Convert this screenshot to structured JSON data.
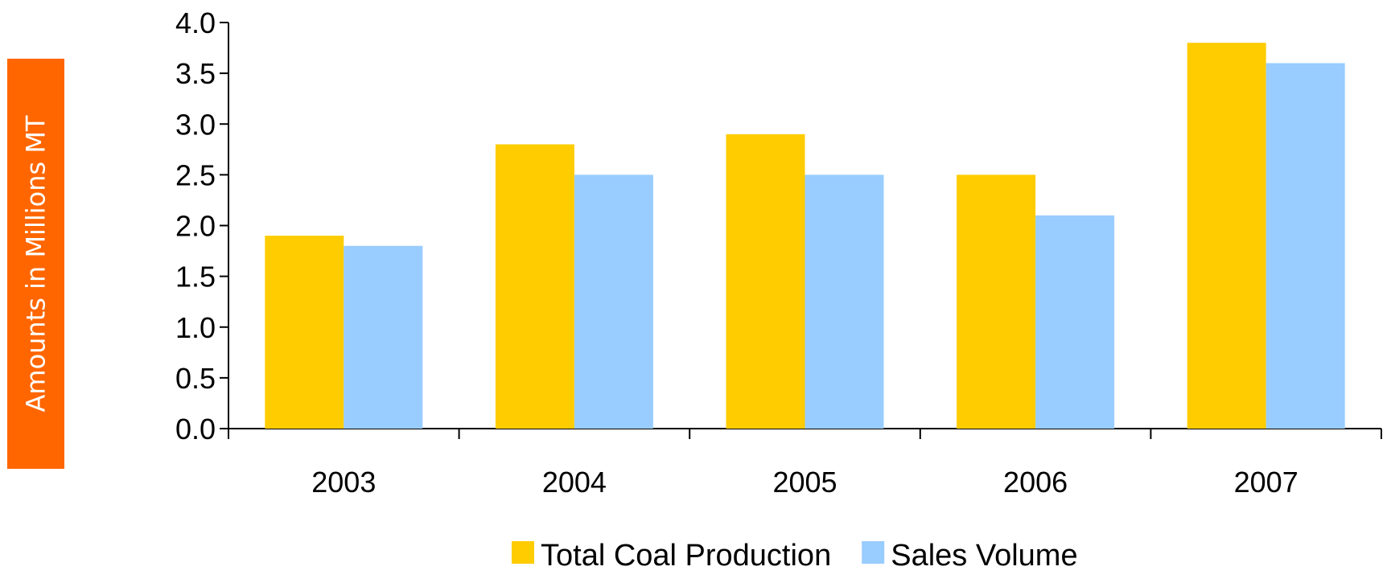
{
  "chart_data": {
    "type": "bar",
    "categories": [
      "2003",
      "2004",
      "2005",
      "2006",
      "2007"
    ],
    "series": [
      {
        "name": "Total Coal Production",
        "values": [
          1.9,
          2.8,
          2.9,
          2.5,
          3.8
        ],
        "color": "#ffcc00"
      },
      {
        "name": "Sales Volume",
        "values": [
          1.8,
          2.5,
          2.5,
          2.1,
          3.6
        ],
        "color": "#99ccff"
      }
    ],
    "ylabel": "Amounts in Millions MT",
    "ylabel_box_color": "#ff6600",
    "yticks": [
      "0.0",
      "0.5",
      "1.0",
      "1.5",
      "2.0",
      "2.5",
      "3.0",
      "3.5",
      "4.0"
    ],
    "ylim": [
      0,
      4.0
    ],
    "grid": false,
    "legend_position": "bottom"
  }
}
